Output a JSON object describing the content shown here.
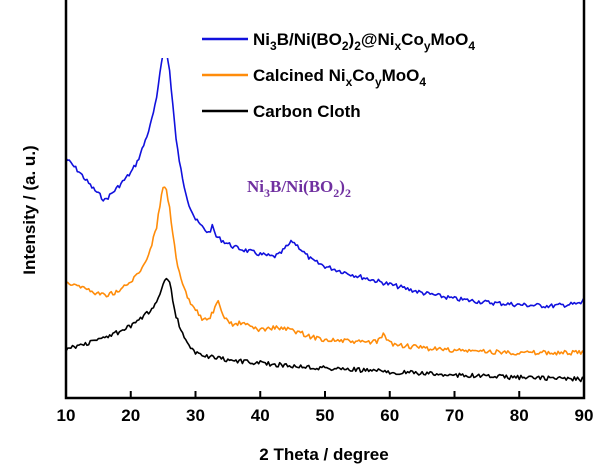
{
  "chart_data": {
    "type": "line",
    "xlabel": "2 Theta / degree",
    "ylabel": "Intensity / (a. u.)",
    "xlim": [
      10,
      90
    ],
    "xticks": [
      10,
      20,
      30,
      40,
      50,
      60,
      70,
      80,
      90
    ],
    "y_ticks_shown": false,
    "grid": false,
    "legend_position": "top-right",
    "series": [
      {
        "name": "Ni3B/Ni(BO2)2@NixCoyMoO4",
        "color": "#1111dd",
        "x": [
          10,
          12,
          14,
          16,
          18,
          20,
          21,
          22,
          23,
          24,
          24.5,
          25,
          25.5,
          26,
          26.5,
          27,
          28,
          29,
          30,
          31,
          32,
          32.6,
          33.2,
          34,
          36,
          38,
          40,
          42,
          43,
          44,
          45,
          46,
          47,
          48,
          50,
          55,
          60,
          65,
          70,
          75,
          80,
          85,
          89.5,
          90
        ],
        "y": [
          18.3,
          17.2,
          15.9,
          14.8,
          15.9,
          17.1,
          18.0,
          19.4,
          21.0,
          23.2,
          25.5,
          27.2,
          27.2,
          25.6,
          22.8,
          19.8,
          16.5,
          14.5,
          13.2,
          12.6,
          12.1,
          12.6,
          11.8,
          11.5,
          10.9,
          10.6,
          10.3,
          10.1,
          10.3,
          10.9,
          11.4,
          10.9,
          10.3,
          9.8,
          9.3,
          8.5,
          7.8,
          7.1,
          6.6,
          6.3,
          6.1,
          6.0,
          6.2,
          6.7
        ]
      },
      {
        "name": "Calcined NixCoyMoO4",
        "color": "#ff8c0a",
        "x": [
          10,
          12,
          14,
          16,
          18,
          20,
          21,
          22,
          23,
          24,
          24.5,
          25,
          25.5,
          26,
          26.5,
          27,
          28,
          29,
          30,
          31,
          32,
          33,
          33.5,
          34,
          35,
          36,
          37,
          38,
          39,
          40,
          42,
          44,
          46,
          48,
          50,
          55,
          58,
          59,
          60,
          62,
          65,
          70,
          75,
          80,
          85,
          90
        ],
        "y": [
          8.0,
          7.7,
          7.2,
          6.9,
          7.2,
          8.0,
          8.6,
          9.4,
          10.7,
          12.6,
          14.4,
          16.0,
          15.7,
          14.2,
          12.1,
          9.9,
          7.7,
          6.4,
          5.7,
          5.0,
          4.8,
          5.8,
          6.3,
          5.4,
          4.7,
          4.4,
          4.6,
          4.4,
          4.2,
          4.0,
          4.2,
          4.1,
          3.8,
          3.4,
          3.2,
          3.0,
          3.0,
          3.6,
          2.9,
          2.7,
          2.5,
          2.3,
          2.2,
          2.1,
          2.1,
          2.1
        ]
      },
      {
        "name": "Carbon Cloth",
        "color": "#000000",
        "x": [
          10,
          12,
          14,
          16,
          18,
          20,
          21,
          22,
          23,
          24,
          25,
          25.5,
          26,
          26.5,
          27,
          28,
          29,
          30,
          32,
          34,
          36,
          38,
          40,
          42,
          45,
          50,
          55,
          60,
          65,
          70,
          75,
          80,
          85,
          90
        ],
        "y": [
          2.4,
          2.7,
          3.0,
          3.4,
          3.8,
          4.3,
          4.7,
          5.1,
          5.6,
          6.4,
          7.9,
          8.3,
          7.9,
          6.6,
          5.2,
          3.6,
          2.6,
          2.1,
          1.8,
          1.6,
          1.45,
          1.35,
          1.25,
          1.15,
          1.0,
          0.82,
          0.68,
          0.52,
          0.38,
          0.26,
          0.15,
          0.05,
          -0.03,
          -0.12
        ]
      }
    ],
    "annotation": {
      "text": "Ni3B/Ni(BO2)2",
      "color": "#7030a0"
    }
  }
}
